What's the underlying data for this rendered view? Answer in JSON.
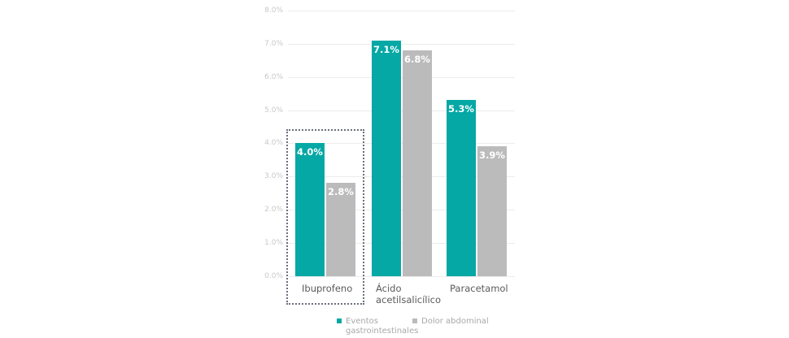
{
  "chart_data": {
    "type": "bar",
    "title": "",
    "xlabel": "",
    "ylabel": "",
    "ylim": [
      0,
      8
    ],
    "y_ticks": [
      "0.0%",
      "1.0%",
      "2.0%",
      "3.0%",
      "4.0%",
      "5.0%",
      "6.0%",
      "7.0%",
      "8.0%"
    ],
    "grid": true,
    "categories": [
      "Ibuprofeno",
      "Ácido acetilsalicílico",
      "Paracetamol"
    ],
    "category_lines": [
      [
        "Ibuprofeno"
      ],
      [
        "Ácido",
        "acetilsalicílico"
      ],
      [
        "Paracetamol"
      ]
    ],
    "series": [
      {
        "name": "Eventos gastrointestinales",
        "color": "#05a8a5",
        "values": [
          4.0,
          7.1,
          5.3
        ],
        "labels": [
          "4.0%",
          "7.1%",
          "5.3%"
        ]
      },
      {
        "name": "Dolor abdominal",
        "color": "#bbbbbb",
        "values": [
          2.8,
          6.8,
          3.9
        ],
        "labels": [
          "2.8%",
          "6.8%",
          "3.9%"
        ]
      }
    ],
    "highlighted_category": "Ibuprofeno",
    "legend": {
      "position": "bottom",
      "items": [
        {
          "lines": [
            "Eventos",
            "gastrointestinales"
          ],
          "color": "#05a8a5"
        },
        {
          "lines": [
            "Dolor abdominal"
          ],
          "color": "#bbbbbb"
        }
      ]
    }
  }
}
